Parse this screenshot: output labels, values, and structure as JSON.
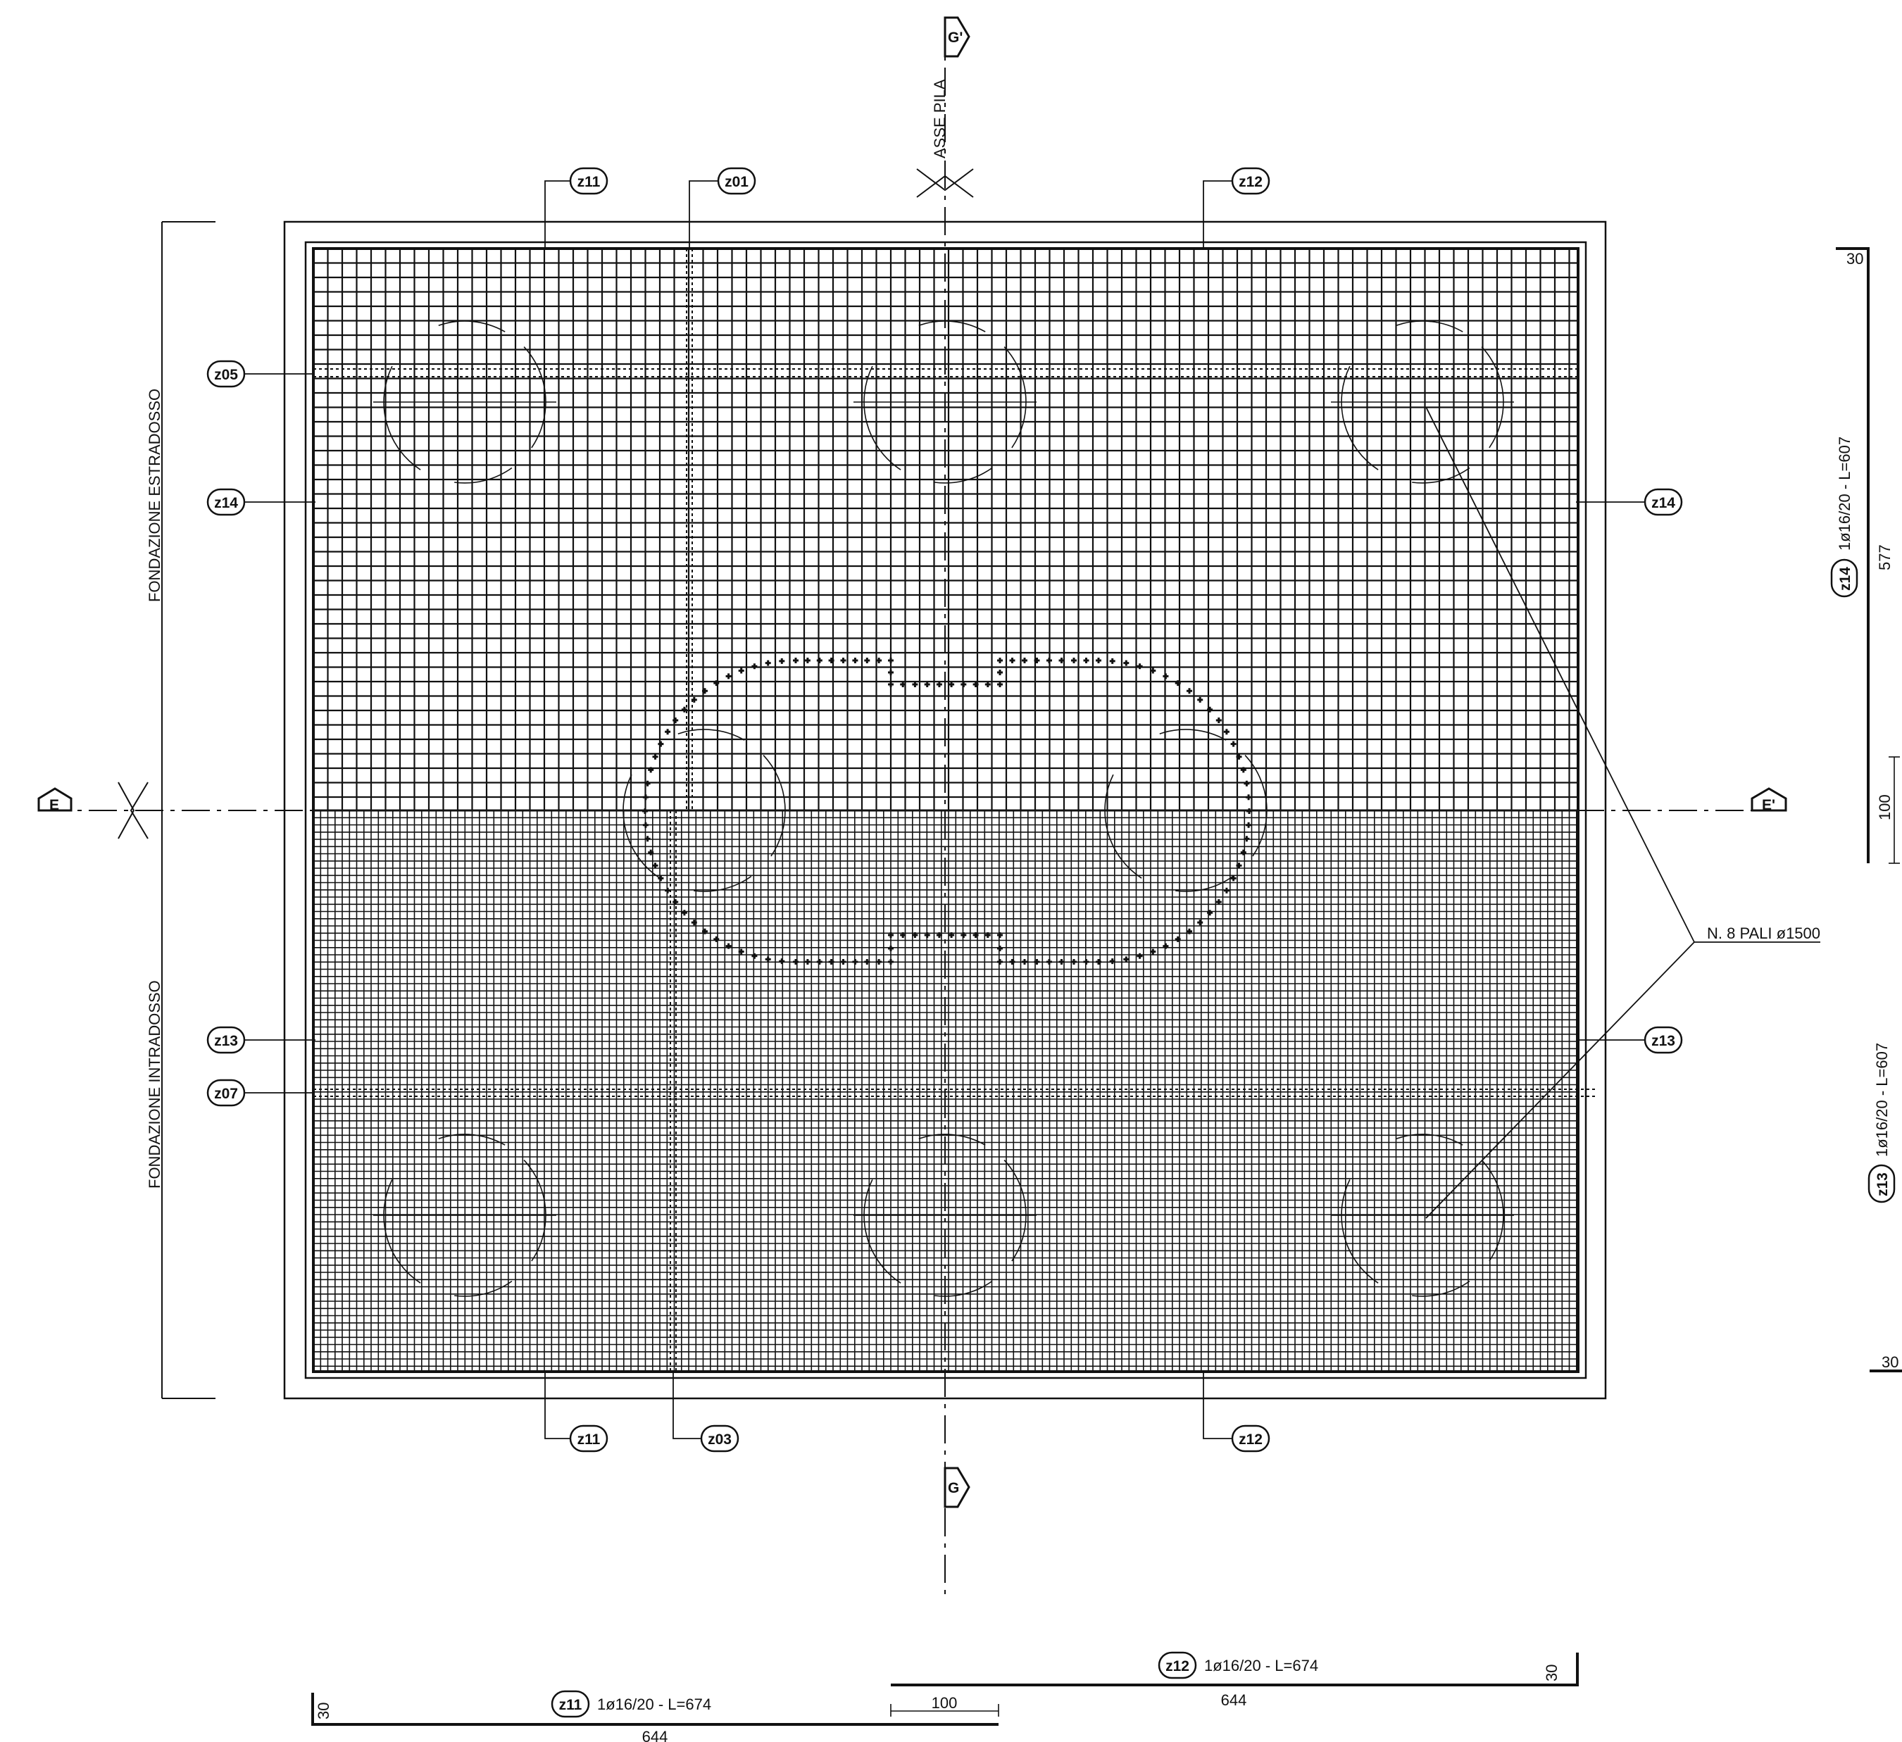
{
  "axis": {
    "pile_axis_label": "ASSE PILA"
  },
  "sections": {
    "g_top": "G'",
    "g_bottom": "G",
    "e_left": "E",
    "e_right": "E'"
  },
  "zones": {
    "top_label": "FONDAZIONE ESTRADOSSO",
    "bottom_label": "FONDAZIONE INTRADOSSO"
  },
  "piles_note": "N. 8 PALI ø1500",
  "tags": {
    "z01": "z01",
    "z03": "z03",
    "z05": "z05",
    "z07": "z07",
    "z11": "z11",
    "z12": "z12",
    "z13": "z13",
    "z14": "z14"
  },
  "bars": {
    "z11": {
      "spec": "1ø16/20  -  L=674",
      "length": "644",
      "hook_left": "30"
    },
    "z12": {
      "spec": "1ø16/20  -  L=674",
      "length": "644",
      "hook_right": "30",
      "offset": "100"
    },
    "z14": {
      "spec": "1ø16/20  -  L=607",
      "length": "577",
      "hook_top": "30",
      "offset": "100"
    },
    "z13": {
      "spec": "1ø16/20  -  L=607",
      "hook_bottom": "30"
    }
  }
}
